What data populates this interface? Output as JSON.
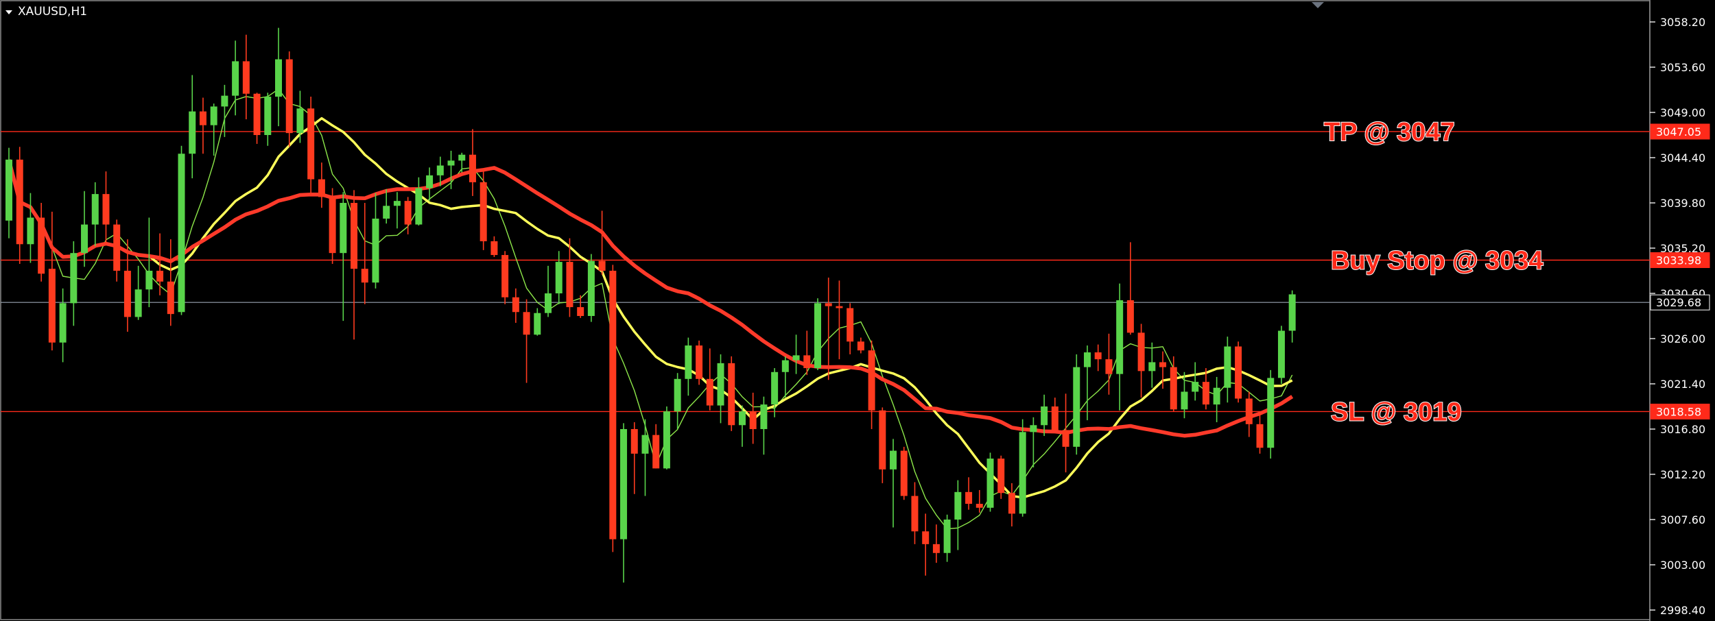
{
  "symbol_label": "XAUUSD,H1",
  "colors": {
    "background": "#000000",
    "bull": "#59d44a",
    "bear": "#ff3b1f",
    "level_line": "#ff2a1a",
    "current_line": "#9aa4b2",
    "ma_fast": "#8ee84a",
    "ma_mid": "#ffff5a",
    "ma_slow": "#ff3a2a",
    "annotation": "#ff2a1a",
    "axis": "#ffffff"
  },
  "chart_data": {
    "type": "candlestick",
    "ylim": [
      2996.2,
      3060.4
    ],
    "yticks": [
      "3058.20",
      "3053.60",
      "3049.00",
      "3044.40",
      "3039.80",
      "3035.20",
      "3030.60",
      "3026.00",
      "3021.40",
      "3016.80",
      "3012.20",
      "3007.60",
      "3003.00",
      "2998.40"
    ],
    "levels": [
      {
        "name": "TP",
        "price": 3047.05,
        "tag": "3047.05",
        "label": "TP @ 3047"
      },
      {
        "name": "Buy Stop",
        "price": 3033.98,
        "tag": "3033.98",
        "label": "Buy Stop @ 3034"
      },
      {
        "name": "SL",
        "price": 3018.58,
        "tag": "3018.58",
        "label": "SL @ 3019"
      }
    ],
    "current_price": {
      "price": 3029.68,
      "tag": "3029.68"
    },
    "candles": [
      [
        3038.0,
        3045.4,
        3036.2,
        3044.2
      ],
      [
        3044.2,
        3045.5,
        3033.6,
        3035.6
      ],
      [
        3035.6,
        3040.8,
        3033.7,
        3038.3
      ],
      [
        3038.3,
        3039.8,
        3031.8,
        3032.6
      ],
      [
        3033.1,
        3038.9,
        3024.8,
        3025.6
      ],
      [
        3025.6,
        3031.1,
        3023.6,
        3029.6
      ],
      [
        3029.6,
        3035.9,
        3027.3,
        3034.7
      ],
      [
        3034.7,
        3041.0,
        3033.3,
        3037.6
      ],
      [
        3037.6,
        3041.9,
        3035.4,
        3040.7
      ],
      [
        3040.7,
        3043.0,
        3035.5,
        3037.6
      ],
      [
        3037.6,
        3038.1,
        3031.8,
        3032.9
      ],
      [
        3032.9,
        3036.1,
        3026.7,
        3028.2
      ],
      [
        3028.2,
        3033.4,
        3027.9,
        3031.0
      ],
      [
        3031.0,
        3038.3,
        3029.2,
        3032.9
      ],
      [
        3032.9,
        3036.7,
        3030.4,
        3031.8
      ],
      [
        3031.8,
        3036.1,
        3027.3,
        3028.5
      ],
      [
        3028.7,
        3045.6,
        3028.4,
        3044.8
      ],
      [
        3044.8,
        3052.8,
        3042.3,
        3049.1
      ],
      [
        3049.1,
        3050.5,
        3044.8,
        3047.7
      ],
      [
        3047.7,
        3049.9,
        3044.6,
        3049.6
      ],
      [
        3049.6,
        3051.8,
        3046.5,
        3050.7
      ],
      [
        3050.7,
        3056.3,
        3048.7,
        3054.2
      ],
      [
        3054.2,
        3056.9,
        3048.3,
        3050.9
      ],
      [
        3050.9,
        3051.0,
        3045.8,
        3046.7
      ],
      [
        3046.7,
        3051.0,
        3045.6,
        3050.6
      ],
      [
        3050.6,
        3057.6,
        3047.6,
        3054.4
      ],
      [
        3054.4,
        3055.2,
        3045.5,
        3046.9
      ],
      [
        3046.9,
        3051.2,
        3045.9,
        3049.4
      ],
      [
        3049.4,
        3050.6,
        3040.6,
        3042.2
      ],
      [
        3042.2,
        3043.9,
        3039.3,
        3040.4
      ],
      [
        3040.4,
        3041.3,
        3033.6,
        3034.7
      ],
      [
        3034.7,
        3040.9,
        3027.8,
        3039.8
      ],
      [
        3039.8,
        3041.1,
        3025.9,
        3033.1
      ],
      [
        3033.1,
        3039.8,
        3029.5,
        3031.7
      ],
      [
        3031.7,
        3040.8,
        3031.1,
        3038.2
      ],
      [
        3038.2,
        3041.2,
        3037.7,
        3039.5
      ],
      [
        3039.5,
        3040.9,
        3037.2,
        3040.0
      ],
      [
        3040.0,
        3040.4,
        3036.6,
        3037.6
      ],
      [
        3037.6,
        3042.4,
        3037.5,
        3041.3
      ],
      [
        3041.3,
        3043.4,
        3040.0,
        3042.6
      ],
      [
        3042.6,
        3044.5,
        3041.5,
        3043.6
      ],
      [
        3043.6,
        3045.1,
        3041.2,
        3044.1
      ],
      [
        3044.1,
        3044.9,
        3042.9,
        3044.7
      ],
      [
        3044.7,
        3047.3,
        3040.5,
        3041.9
      ],
      [
        3041.9,
        3043.3,
        3035.0,
        3035.9
      ],
      [
        3035.9,
        3036.4,
        3034.3,
        3034.5
      ],
      [
        3034.5,
        3034.9,
        3029.5,
        3030.2
      ],
      [
        3030.2,
        3031.1,
        3027.6,
        3028.7
      ],
      [
        3028.7,
        3030.0,
        3021.5,
        3026.4
      ],
      [
        3026.4,
        3029.1,
        3026.3,
        3028.6
      ],
      [
        3028.6,
        3033.4,
        3028.2,
        3030.6
      ],
      [
        3030.6,
        3034.9,
        3029.5,
        3033.8
      ],
      [
        3033.8,
        3036.2,
        3028.2,
        3029.2
      ],
      [
        3029.2,
        3030.4,
        3028.1,
        3028.3
      ],
      [
        3028.3,
        3034.6,
        3027.7,
        3033.9
      ],
      [
        3033.9,
        3039.0,
        3032.5,
        3032.9
      ],
      [
        3032.9,
        3033.5,
        3004.3,
        3005.6
      ],
      [
        3005.6,
        3017.4,
        3001.2,
        3016.8
      ],
      [
        3016.8,
        3017.5,
        3010.2,
        3014.3
      ],
      [
        3014.3,
        3017.8,
        3010.0,
        3016.2
      ],
      [
        3016.2,
        3017.3,
        3012.8,
        3012.8
      ],
      [
        3012.8,
        3019.1,
        3012.7,
        3018.6
      ],
      [
        3018.6,
        3022.5,
        3016.8,
        3021.9
      ],
      [
        3021.9,
        3026.1,
        3020.2,
        3025.3
      ],
      [
        3025.3,
        3025.8,
        3021.3,
        3021.9
      ],
      [
        3021.9,
        3025.0,
        3018.7,
        3019.2
      ],
      [
        3019.2,
        3024.4,
        3017.4,
        3023.5
      ],
      [
        3023.5,
        3024.2,
        3016.6,
        3017.2
      ],
      [
        3017.2,
        3019.2,
        3015.0,
        3018.6
      ],
      [
        3018.6,
        3020.5,
        3015.3,
        3016.8
      ],
      [
        3016.8,
        3020.1,
        3014.2,
        3019.3
      ],
      [
        3019.3,
        3023.0,
        3018.0,
        3022.6
      ],
      [
        3022.6,
        3024.2,
        3020.0,
        3023.8
      ],
      [
        3023.8,
        3026.4,
        3022.4,
        3024.3
      ],
      [
        3024.3,
        3026.8,
        3022.3,
        3023.0
      ],
      [
        3023.0,
        3030.1,
        3022.8,
        3029.6
      ],
      [
        3029.6,
        3032.2,
        3021.8,
        3029.3
      ],
      [
        3029.3,
        3031.9,
        3023.9,
        3029.1
      ],
      [
        3029.1,
        3029.6,
        3024.4,
        3025.7
      ],
      [
        3025.7,
        3026.1,
        3024.5,
        3024.8
      ],
      [
        3024.8,
        3025.8,
        3016.8,
        3018.7
      ],
      [
        3018.7,
        3019.0,
        3011.3,
        3012.7
      ],
      [
        3012.7,
        3015.8,
        3006.8,
        3014.6
      ],
      [
        3014.6,
        3015.0,
        3009.6,
        3010.0
      ],
      [
        3010.0,
        3011.4,
        3005.1,
        3006.4
      ],
      [
        3006.4,
        3008.2,
        3001.9,
        3005.1
      ],
      [
        3005.1,
        3007.1,
        3003.2,
        3004.2
      ],
      [
        3004.2,
        3008.1,
        3003.3,
        3007.6
      ],
      [
        3007.6,
        3011.6,
        3004.5,
        3010.4
      ],
      [
        3010.4,
        3011.9,
        3008.6,
        3009.2
      ],
      [
        3009.2,
        3010.6,
        3008.3,
        3008.8
      ],
      [
        3008.8,
        3014.4,
        3008.4,
        3013.8
      ],
      [
        3013.8,
        3014.1,
        3009.7,
        3010.3
      ],
      [
        3010.3,
        3011.3,
        3006.9,
        3008.2
      ],
      [
        3008.2,
        3017.8,
        3007.9,
        3016.5
      ],
      [
        3016.5,
        3018.0,
        3012.9,
        3017.2
      ],
      [
        3017.2,
        3020.3,
        3016.1,
        3019.1
      ],
      [
        3019.1,
        3020.0,
        3016.7,
        3016.7
      ],
      [
        3016.7,
        3020.4,
        3012.4,
        3015.0
      ],
      [
        3015.0,
        3024.4,
        3014.2,
        3023.1
      ],
      [
        3023.1,
        3025.3,
        3017.7,
        3024.6
      ],
      [
        3024.6,
        3025.4,
        3022.7,
        3023.9
      ],
      [
        3023.9,
        3026.5,
        3020.3,
        3022.4
      ],
      [
        3022.4,
        3031.6,
        3018.7,
        3029.9
      ],
      [
        3029.9,
        3035.8,
        3026.4,
        3026.6
      ],
      [
        3026.6,
        3027.5,
        3020.0,
        3022.7
      ],
      [
        3022.7,
        3025.6,
        3021.0,
        3023.6
      ],
      [
        3023.6,
        3024.7,
        3020.9,
        3023.1
      ],
      [
        3023.1,
        3024.2,
        3018.6,
        3018.8
      ],
      [
        3018.8,
        3022.6,
        3017.9,
        3020.6
      ],
      [
        3020.6,
        3023.6,
        3019.7,
        3021.6
      ],
      [
        3021.6,
        3023.0,
        3018.8,
        3019.3
      ],
      [
        3019.3,
        3022.1,
        3017.5,
        3021.0
      ],
      [
        3021.0,
        3026.2,
        3019.5,
        3025.2
      ],
      [
        3025.2,
        3025.7,
        3019.5,
        3019.9
      ],
      [
        3019.9,
        3020.6,
        3016.0,
        3017.3
      ],
      [
        3017.3,
        3018.5,
        3014.3,
        3014.9
      ],
      [
        3014.9,
        3022.8,
        3013.8,
        3022.0
      ],
      [
        3022.0,
        3027.3,
        3021.4,
        3026.8
      ],
      [
        3026.8,
        3030.9,
        3025.6,
        3030.5
      ]
    ]
  }
}
